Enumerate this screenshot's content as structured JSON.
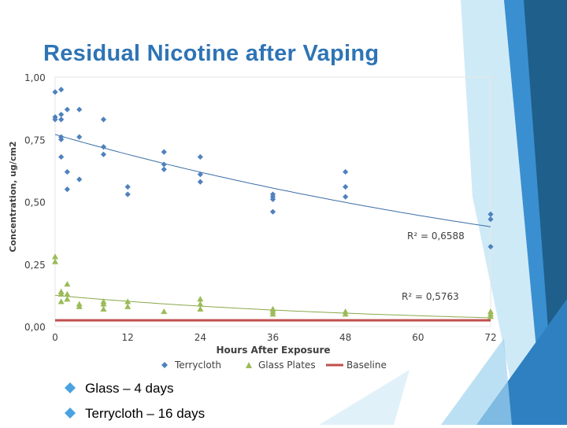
{
  "title": "Residual Nicotine after Vaping",
  "bullets": [
    "Glass – 4 days",
    "Terrycloth – 16 days"
  ],
  "colors": {
    "title": "#2e74b5",
    "terrycloth": "#4f81bd",
    "glass": "#9bbb59",
    "baseline": "#c0504d",
    "bullet_marker": "#4aa3df",
    "deco_dark": "#1f5f8b",
    "deco_mid": "#2f80c1",
    "deco_light": "#9fd3ee"
  },
  "chart_data": {
    "type": "scatter",
    "xlabel": "Hours After Exposure",
    "ylabel": "Concentration, ug/cm2",
    "xlim": [
      0,
      72
    ],
    "ylim": [
      0,
      1
    ],
    "xticks": [
      "0",
      "12",
      "24",
      "36",
      "48",
      "60",
      "72"
    ],
    "yticks": [
      "0,00",
      "0,25",
      "0,50",
      "0,75",
      "1,00"
    ],
    "grid": false,
    "legend": "bottom",
    "series": [
      {
        "name": "Terrycloth",
        "marker": "diamond",
        "points": [
          [
            0,
            0.94
          ],
          [
            1,
            0.95
          ],
          [
            0,
            0.84
          ],
          [
            0,
            0.83
          ],
          [
            1,
            0.85
          ],
          [
            1,
            0.83
          ],
          [
            2,
            0.87
          ],
          [
            4,
            0.87
          ],
          [
            1,
            0.76
          ],
          [
            1,
            0.75
          ],
          [
            1,
            0.68
          ],
          [
            2,
            0.62
          ],
          [
            2,
            0.55
          ],
          [
            4,
            0.76
          ],
          [
            4,
            0.59
          ],
          [
            8,
            0.83
          ],
          [
            8,
            0.72
          ],
          [
            8,
            0.69
          ],
          [
            12,
            0.56
          ],
          [
            12,
            0.53
          ],
          [
            18,
            0.7
          ],
          [
            18,
            0.65
          ],
          [
            18,
            0.63
          ],
          [
            24,
            0.68
          ],
          [
            24,
            0.61
          ],
          [
            24,
            0.58
          ],
          [
            36,
            0.53
          ],
          [
            36,
            0.52
          ],
          [
            36,
            0.51
          ],
          [
            36,
            0.46
          ],
          [
            48,
            0.62
          ],
          [
            48,
            0.56
          ],
          [
            48,
            0.52
          ],
          [
            72,
            0.45
          ],
          [
            72,
            0.43
          ],
          [
            72,
            0.32
          ]
        ],
        "trend": {
          "r2": "R² = 0,6588",
          "from": [
            0,
            0.77
          ],
          "to": [
            72,
            0.4
          ]
        }
      },
      {
        "name": "Glass Plates",
        "marker": "triangle",
        "points": [
          [
            0,
            0.28
          ],
          [
            0,
            0.26
          ],
          [
            1,
            0.14
          ],
          [
            1,
            0.13
          ],
          [
            1,
            0.1
          ],
          [
            2,
            0.17
          ],
          [
            2,
            0.13
          ],
          [
            2,
            0.11
          ],
          [
            4,
            0.09
          ],
          [
            4,
            0.08
          ],
          [
            8,
            0.1
          ],
          [
            8,
            0.09
          ],
          [
            8,
            0.07
          ],
          [
            12,
            0.1
          ],
          [
            12,
            0.08
          ],
          [
            18,
            0.06
          ],
          [
            24,
            0.11
          ],
          [
            24,
            0.09
          ],
          [
            24,
            0.07
          ],
          [
            36,
            0.07
          ],
          [
            36,
            0.06
          ],
          [
            36,
            0.05
          ],
          [
            48,
            0.06
          ],
          [
            48,
            0.05
          ],
          [
            72,
            0.06
          ],
          [
            72,
            0.05
          ],
          [
            72,
            0.04
          ]
        ],
        "trend": {
          "r2": "R² = 0,5763",
          "from": [
            0,
            0.125
          ],
          "to": [
            72,
            0.035
          ]
        }
      },
      {
        "name": "Baseline",
        "marker": "line",
        "value": 0.025
      }
    ]
  }
}
